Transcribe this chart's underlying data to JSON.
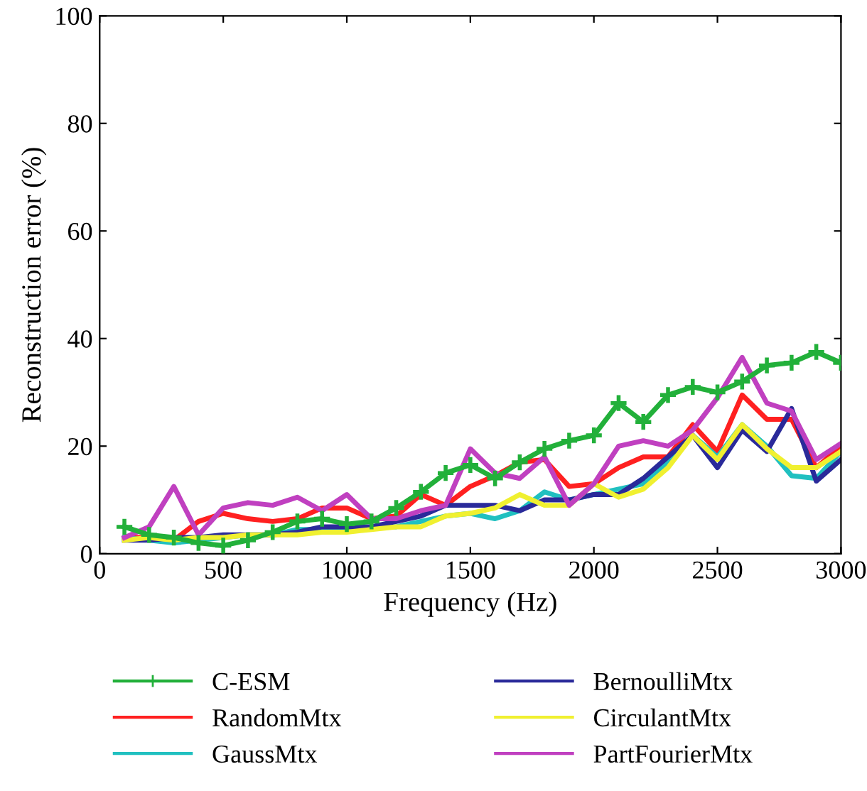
{
  "chart_data": {
    "type": "line",
    "xlabel": "Frequency (Hz)",
    "ylabel": "Reconstruction error (%)",
    "x": [
      100,
      200,
      300,
      400,
      500,
      600,
      700,
      800,
      900,
      1000,
      1100,
      1200,
      1300,
      1400,
      1500,
      1600,
      1700,
      1800,
      1900,
      2000,
      2100,
      2200,
      2300,
      2400,
      2500,
      2600,
      2700,
      2800,
      2900,
      3000
    ],
    "xlim": [
      0,
      3000
    ],
    "xticks": [
      0,
      500,
      1000,
      1500,
      2000,
      2500,
      3000
    ],
    "ylim": [
      0,
      100
    ],
    "yticks": [
      0,
      20,
      40,
      60,
      80,
      100
    ],
    "grid": false,
    "legend": "bottom",
    "line_style": "solid",
    "series": [
      {
        "name": "C-ESM",
        "color": "#22b03a",
        "marker": "cross",
        "values": [
          5,
          3.5,
          3,
          2,
          1.5,
          2.5,
          4,
          6,
          6.5,
          5.5,
          6,
          8.5,
          11.5,
          15,
          16.5,
          14,
          17,
          19.5,
          21,
          22,
          28,
          24.5,
          29.5,
          31,
          30,
          32,
          35,
          35.5,
          37.5,
          35.5
        ]
      },
      {
        "name": "RandomMtx",
        "color": "#ff2020",
        "values": [
          3,
          3,
          2.5,
          6,
          7.5,
          6.5,
          6,
          6.5,
          8.5,
          8.5,
          6.5,
          7,
          11,
          9,
          12.5,
          14.5,
          17,
          17.5,
          12.5,
          13,
          16,
          18,
          18,
          24,
          19,
          29.5,
          25,
          25,
          16,
          20
        ]
      },
      {
        "name": "GaussMtx",
        "color": "#20c0c0",
        "values": [
          3,
          2.5,
          2,
          2.5,
          3,
          3.5,
          3.5,
          4.5,
          4.5,
          4.5,
          5,
          5,
          6,
          7,
          7.5,
          6.5,
          8,
          11.5,
          10,
          11,
          12,
          13,
          17,
          22,
          18,
          24,
          20,
          14.5,
          14,
          19
        ]
      },
      {
        "name": "BernoulliMtx",
        "color": "#2a2a9a",
        "values": [
          2.5,
          2.5,
          3,
          3,
          3.5,
          3.5,
          3.5,
          4,
          5,
          5,
          5,
          6,
          7,
          9,
          9,
          9,
          8,
          10,
          10,
          11,
          11,
          14,
          18,
          22,
          16,
          23,
          19,
          27,
          13.5,
          17.5
        ]
      },
      {
        "name": "CirculantMtx",
        "color": "#f0f030",
        "values": [
          2.5,
          3,
          2.5,
          3,
          3,
          3.5,
          3.5,
          3.5,
          4,
          4,
          4.5,
          5,
          5,
          7,
          7.5,
          8.5,
          11,
          9,
          9,
          13,
          10.5,
          12,
          16,
          22,
          17.5,
          24,
          19.5,
          16,
          16,
          19
        ]
      },
      {
        "name": "PartFourierMtx",
        "color": "#c040c0",
        "values": [
          3,
          5,
          12.5,
          3.5,
          8.5,
          9.5,
          9,
          10.5,
          8,
          11,
          6.5,
          6.5,
          8,
          9,
          19.5,
          15,
          14,
          18,
          9,
          13,
          20,
          21,
          20,
          23,
          29,
          36.5,
          28,
          26.5,
          17.5,
          20.5
        ]
      }
    ]
  }
}
